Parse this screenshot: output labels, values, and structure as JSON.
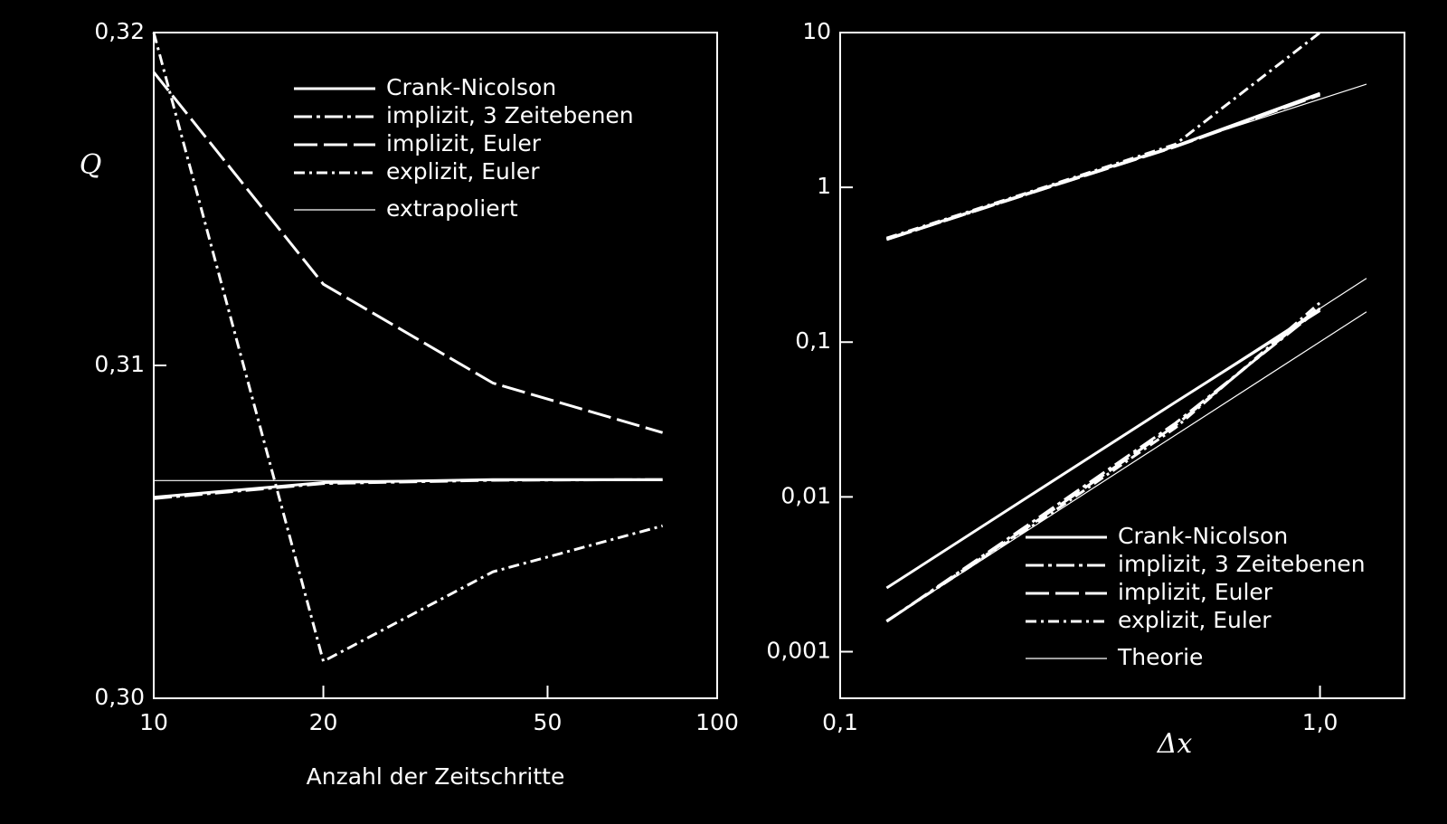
{
  "chart_data": [
    {
      "type": "line",
      "xlog": true,
      "ylog": false,
      "legend": "upper right",
      "x_label": "Anzahl der Zeitschritte",
      "y_label": "Q",
      "xlim": [
        10,
        100
      ],
      "xticks": [
        10,
        20,
        50,
        100
      ],
      "ylim": [
        0.3,
        0.32
      ],
      "yticks": [
        {
          "value": 0.3,
          "label": "0,30"
        },
        {
          "value": 0.31,
          "label": "0,31"
        },
        {
          "value": 0.32,
          "label": "0,32"
        }
      ],
      "series": [
        {
          "name": "Crank-Nicolson",
          "color": "#ffffff",
          "dash": "solid",
          "x": [
            10,
            20,
            40,
            80
          ],
          "values": [
            0.30604,
            0.30648,
            0.30657,
            0.30657
          ]
        },
        {
          "name": "implizit, 3 Zeitebenen",
          "color": "#ffffff",
          "dash": "dash-dot",
          "x": [
            10,
            20,
            40,
            80
          ],
          "values": [
            0.306,
            0.30645,
            0.30655,
            0.30657
          ]
        },
        {
          "name": "implizit, Euler",
          "color": "#ffffff",
          "dash": "long-dash",
          "x": [
            10,
            20,
            40,
            80
          ],
          "values": [
            0.31881,
            0.31244,
            0.30947,
            0.30798
          ]
        },
        {
          "name": "explizit, Euler",
          "color": "#ffffff",
          "dash": "dash-dot-short",
          "x": [
            10,
            20,
            40,
            80
          ],
          "values": [
            0.32,
            0.30111,
            0.3038,
            0.30518
          ]
        },
        {
          "name": "extrapoliert",
          "color": "#ffffff",
          "dash": "thin",
          "x": [
            10,
            80
          ],
          "values": [
            0.30654,
            0.30654
          ]
        }
      ]
    },
    {
      "type": "line",
      "xlog": true,
      "ylog": true,
      "legend": "lower right",
      "x_label": "Δx",
      "xlim": [
        0.1,
        1.5
      ],
      "xticks": [
        {
          "value": 0.1,
          "label": "0,1"
        },
        {
          "value": 1.0,
          "label": "1,0"
        }
      ],
      "ylim": [
        0.0005,
        10
      ],
      "yticks": [
        {
          "value": 0.001,
          "label": "0,001"
        },
        {
          "value": 0.01,
          "label": "0,01"
        },
        {
          "value": 0.1,
          "label": "0,1"
        },
        1,
        10
      ],
      "series": [
        {
          "name": "Crank-Nicolson",
          "color": "#ffffff",
          "dash": "solid",
          "x": [
            0.125,
            0.25,
            0.5,
            1.0
          ],
          "lines": [
            [
              0.464,
              0.93,
              1.85,
              4.05
            ],
            [
              0.00258,
              0.0103,
              0.041,
              0.16
            ]
          ]
        },
        {
          "name": "implizit, 3 Zeitebenen",
          "color": "#ffffff",
          "dash": "dash-dot",
          "x": [
            0.125,
            0.25,
            0.5,
            1.0
          ],
          "lines": [
            [
              0.46,
              0.92,
              1.84,
              4.0
            ],
            [
              0.00157,
              0.0068,
              0.03,
              0.165
            ]
          ]
        },
        {
          "name": "implizit, Euler",
          "color": "#ffffff",
          "dash": "long-dash",
          "x": [
            0.125,
            0.25,
            0.5,
            1.0
          ],
          "lines": [
            [
              0.46,
              0.92,
              1.83,
              3.95
            ],
            [
              0.00157,
              0.0066,
              0.029,
              0.17
            ]
          ]
        },
        {
          "name": "explizit, Euler",
          "color": "#ffffff",
          "dash": "dash-dot-short",
          "x": [
            0.125,
            0.25,
            0.5,
            1.0
          ],
          "lines": [
            [
              0.47,
              0.94,
              1.9,
              10
            ],
            [
              0.00158,
              0.0064,
              0.028,
              0.18
            ]
          ]
        },
        {
          "name": "Theorie",
          "color": "#ffffff",
          "dash": "thin",
          "x": [
            0.125,
            1.25
          ],
          "lines": [
            [
              0.464,
              4.64
            ],
            [
              0.00258,
              0.258
            ],
            [
              0.00157,
              0.157
            ]
          ]
        }
      ]
    }
  ]
}
